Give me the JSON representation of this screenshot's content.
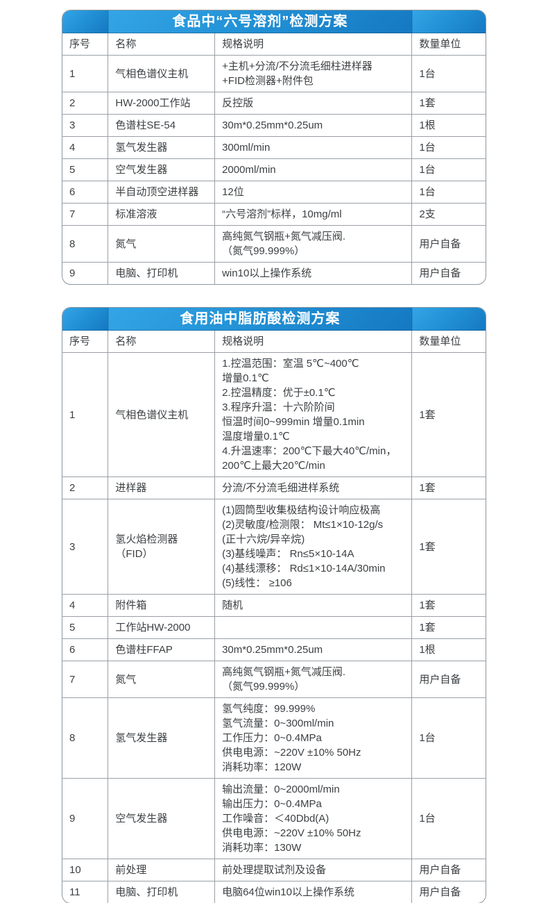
{
  "colors": {
    "title_bar_gradient_start": "#33a5e6",
    "title_bar_gradient_end": "#1579c2",
    "title_text": "#ffffff",
    "grid_line": "#9aa0a6",
    "body_text": "#3c4043",
    "page_background": "#ffffff"
  },
  "tables": [
    {
      "title": "食品中“六号溶剂”检测方案",
      "headers": [
        "序号",
        "名称",
        "规格说明",
        "数量单位"
      ],
      "rows": [
        {
          "no": "1",
          "name": "气相色谱仪主机",
          "spec": [
            "+主机+分流/不分流毛细柱进样器",
            "+FID检测器+附件包"
          ],
          "qty": "1台"
        },
        {
          "no": "2",
          "name": "HW-2000工作站",
          "spec": [
            "反控版"
          ],
          "qty": "1套"
        },
        {
          "no": "3",
          "name": "色谱柱SE-54",
          "spec": [
            "30m*0.25mm*0.25um"
          ],
          "qty": "1根"
        },
        {
          "no": "4",
          "name": "氢气发生器",
          "spec": [
            "300ml/min"
          ],
          "qty": "1台"
        },
        {
          "no": "5",
          "name": "空气发生器",
          "spec": [
            "2000ml/min"
          ],
          "qty": "1台"
        },
        {
          "no": "6",
          "name": "半自动顶空进样器",
          "spec": [
            "12位"
          ],
          "qty": "1台"
        },
        {
          "no": "7",
          "name": "标准溶液",
          "spec": [
            "“六号溶剂”标样，10mg/ml"
          ],
          "qty": "2支"
        },
        {
          "no": "8",
          "name": "氮气",
          "spec": [
            "高纯氮气钢瓶+氮气减压阀.",
            "（氮气99.999%）"
          ],
          "qty": "用户自备"
        },
        {
          "no": "9",
          "name": "电脑、打印机",
          "spec": [
            "win10以上操作系统"
          ],
          "qty": "用户自备"
        }
      ]
    },
    {
      "title": "食用油中脂肪酸检测方案",
      "headers": [
        "序号",
        "名称",
        "规格说明",
        "数量单位"
      ],
      "rows": [
        {
          "no": "1",
          "name": "气相色谱仪主机",
          "spec": [
            "1.控温范围：室温 5℃~400℃",
            "增量0.1℃",
            "2.控温精度：优于±0.1℃",
            "3.程序升温：十六阶阶间",
            "恒温时间0~999min 增量0.1min",
            "温度增量0.1℃",
            "4.升温速率：200℃下最大40℃/min，",
            "200℃上最大20℃/min"
          ],
          "qty": "1套"
        },
        {
          "no": "2",
          "name": "进样器",
          "spec": [
            "分流/不分流毛细进样系统"
          ],
          "qty": "1套"
        },
        {
          "no": "3",
          "name": "氢火焰检测器（FID）",
          "spec": [
            "(1)圆筒型收集极结构设计响应极高",
            "(2)灵敏度/检测限： Mt≤1×10-12g/s",
            "(正十六烷/异辛烷)",
            "(3)基线噪声： Rn≤5×10-14A",
            "(4)基线漂移： Rd≤1×10-14A/30min",
            "(5)线性： ≥106"
          ],
          "qty": "1套"
        },
        {
          "no": "4",
          "name": "附件箱",
          "spec": [
            "随机"
          ],
          "qty": "1套"
        },
        {
          "no": "5",
          "name": "工作站HW-2000",
          "spec": [
            ""
          ],
          "qty": "1套"
        },
        {
          "no": "6",
          "name": "色谱柱FFAP",
          "spec": [
            "30m*0.25mm*0.25um"
          ],
          "qty": "1根"
        },
        {
          "no": "7",
          "name": "氮气",
          "spec": [
            "高纯氮气钢瓶+氮气减压阀.",
            "（氮气99.999%）"
          ],
          "qty": "用户自备"
        },
        {
          "no": "8",
          "name": "氢气发生器",
          "spec": [
            "氢气纯度：99.999%",
            "氢气流量：0~300ml/min",
            "工作压力：0~0.4MPa",
            "供电电源：~220V ±10% 50Hz",
            "消耗功率：120W"
          ],
          "qty": "1台"
        },
        {
          "no": "9",
          "name": "空气发生器",
          "spec": [
            "输出流量：0~2000ml/min",
            "输出压力：0~0.4MPa",
            "工作噪音：＜40Dbd(A)",
            "供电电源：~220V ±10% 50Hz",
            "消耗功率：130W"
          ],
          "qty": "1台"
        },
        {
          "no": "10",
          "name": "前处理",
          "spec": [
            "前处理提取试剂及设备"
          ],
          "qty": "用户自备"
        },
        {
          "no": "11",
          "name": "电脑、打印机",
          "spec": [
            "电脑64位win10以上操作系统"
          ],
          "qty": "用户自备"
        }
      ]
    }
  ]
}
